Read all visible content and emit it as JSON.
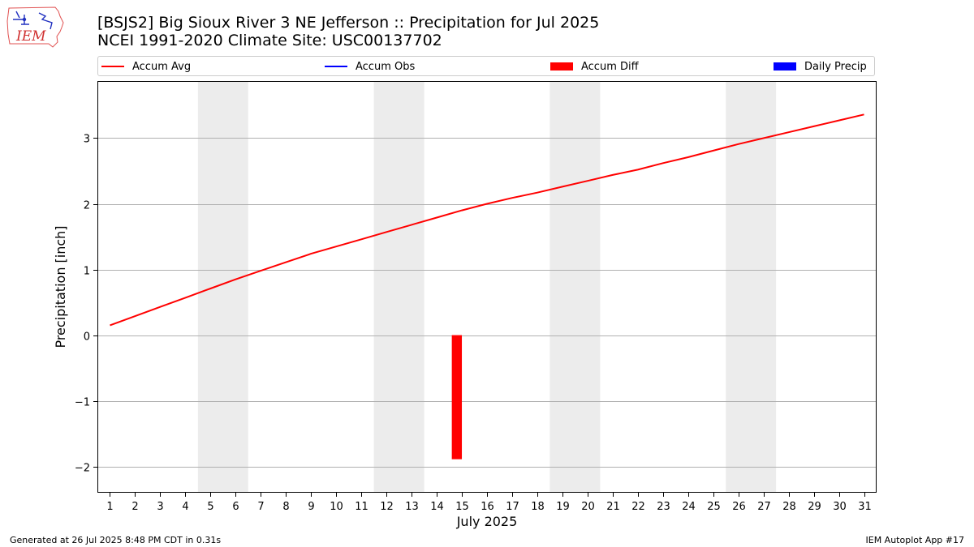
{
  "logo": {
    "text": "IEM"
  },
  "header": {
    "title_line1": "[BSJS2] Big Sioux River 3 NE Jefferson :: Precipitation for Jul 2025",
    "title_line2": "NCEI 1991-2020 Climate Site: USC00137702"
  },
  "legend": {
    "items": [
      {
        "label": "Accum Avg",
        "kind": "line",
        "color": "#ff0000"
      },
      {
        "label": "Accum Obs",
        "kind": "line",
        "color": "#0000ff"
      },
      {
        "label": "Accum Diff",
        "kind": "box",
        "color": "#ff0000"
      },
      {
        "label": "Daily Precip",
        "kind": "box",
        "color": "#0000ff"
      }
    ]
  },
  "footer": {
    "left": "Generated at 26 Jul 2025 8:48 PM CDT in 0.31s",
    "right": "IEM Autoplot App #17"
  },
  "chart_data": {
    "type": "line",
    "title": "[BSJS2] Big Sioux River 3 NE Jefferson :: Precipitation for Jul 2025",
    "subtitle": "NCEI 1991-2020 Climate Site: USC00137702",
    "xlabel": "July 2025",
    "ylabel": "Precipitation [inch]",
    "xlim": [
      0.5,
      31.5
    ],
    "ylim": [
      -2.4,
      3.87
    ],
    "yticks": [
      -2,
      -1,
      0,
      1,
      2,
      3
    ],
    "ytick_labels": [
      "−2",
      "−1",
      "0",
      "1",
      "2",
      "3"
    ],
    "x": [
      1,
      2,
      3,
      4,
      5,
      6,
      7,
      8,
      9,
      10,
      11,
      12,
      13,
      14,
      15,
      16,
      17,
      18,
      19,
      20,
      21,
      22,
      23,
      24,
      25,
      26,
      27,
      28,
      29,
      30,
      31
    ],
    "xtick_labels": [
      "1",
      "2",
      "3",
      "4",
      "5",
      "6",
      "7",
      "8",
      "9",
      "10",
      "11",
      "12",
      "13",
      "14",
      "15",
      "16",
      "17",
      "18",
      "19",
      "20",
      "21",
      "22",
      "23",
      "24",
      "25",
      "26",
      "27",
      "28",
      "29",
      "30",
      "31"
    ],
    "weekend_bands": [
      [
        4.5,
        6.5
      ],
      [
        11.5,
        13.5
      ],
      [
        18.5,
        20.5
      ],
      [
        25.5,
        27.5
      ]
    ],
    "grid": "y",
    "series": [
      {
        "name": "Accum Avg",
        "type": "line",
        "color": "#ff0000",
        "values": [
          0.15,
          0.29,
          0.43,
          0.57,
          0.71,
          0.85,
          0.98,
          1.11,
          1.24,
          1.35,
          1.46,
          1.57,
          1.68,
          1.79,
          1.9,
          2.0,
          2.09,
          2.17,
          2.26,
          2.35,
          2.44,
          2.52,
          2.62,
          2.71,
          2.81,
          2.91,
          3.0,
          3.09,
          3.18,
          3.27,
          3.36
        ]
      },
      {
        "name": "Accum Diff",
        "type": "bar",
        "color": "#ff0000",
        "bars": [
          {
            "x": 14.8,
            "value": -1.89
          }
        ]
      }
    ]
  }
}
